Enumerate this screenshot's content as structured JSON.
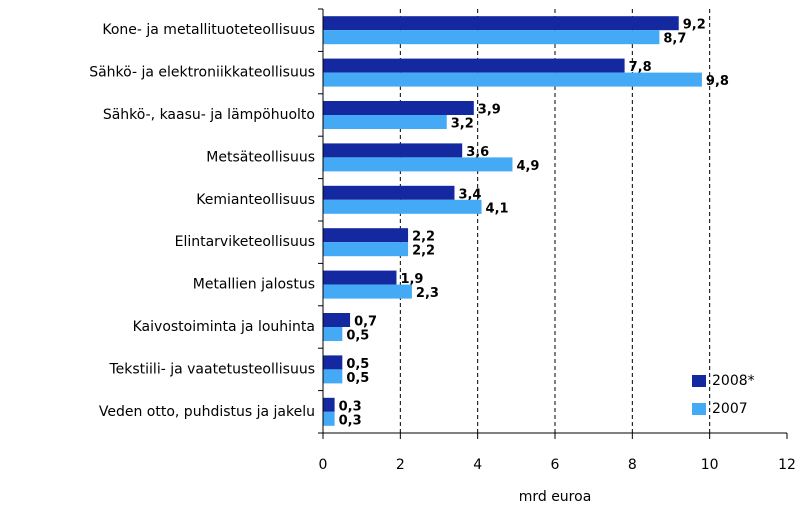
{
  "chart_data": {
    "type": "hbar",
    "categories": [
      "Kone- ja metallituoteteollisuus",
      "Sähkö- ja elektroniikkateollisuus",
      "Sähkö-, kaasu- ja lämpöhuolto",
      "Metsäteollisuus",
      "Kemianteollisuus",
      "Elintarviketeollisuus",
      "Metallien jalostus",
      "Kaivostoiminta ja louhinta",
      "Tekstiili- ja vaatetusteollisuus",
      "Veden otto, puhdistus ja jakelu"
    ],
    "series": [
      {
        "name": "2008*",
        "color": "#1428a0",
        "values": [
          9.2,
          7.8,
          3.9,
          3.6,
          3.4,
          2.2,
          1.9,
          0.7,
          0.5,
          0.3
        ],
        "value_labels": [
          "9,2",
          "7,8",
          "3,9",
          "3,6",
          "3,4",
          "2,2",
          "1,9",
          "0,7",
          "0,5",
          "0,3"
        ]
      },
      {
        "name": "2007",
        "color": "#45aaf5",
        "values": [
          8.7,
          9.8,
          3.2,
          4.9,
          4.1,
          2.2,
          2.3,
          0.5,
          0.5,
          0.3
        ],
        "value_labels": [
          "8,7",
          "9,8",
          "3,2",
          "4,9",
          "4,1",
          "2,2",
          "2,3",
          "0,5",
          "0,5",
          "0,3"
        ]
      }
    ],
    "xlabel": "mrd euroa",
    "xlim": [
      0,
      12
    ],
    "xticks": [
      0,
      2,
      4,
      6,
      8,
      10,
      12
    ],
    "grid": true,
    "legend": "lower right"
  }
}
